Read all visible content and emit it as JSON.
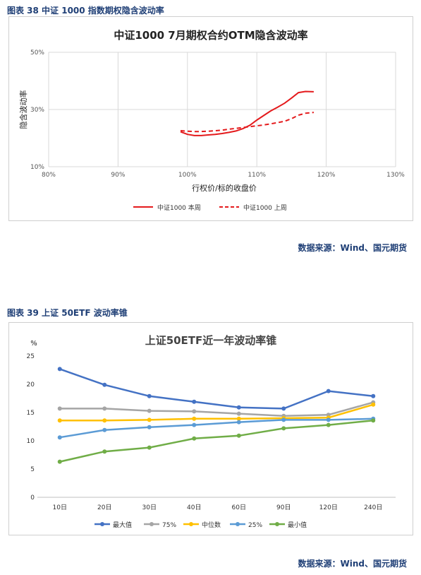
{
  "figure1": {
    "caption": "图表 38 中证 1000 指数期权隐含波动率",
    "source": "数据来源：Wind、国元期货"
  },
  "figure2": {
    "caption": "图表 39 上证 50ETF 波动率锥",
    "source": "数据来源：Wind、国元期货"
  },
  "chart_data": [
    {
      "type": "line",
      "title": "中证1000 7月期权合约OTM隐含波动率",
      "xlabel": "行权价/标的收盘价",
      "ylabel": "隐含波动率",
      "xlim": [
        80,
        130
      ],
      "ylim": [
        10,
        50
      ],
      "x_ticks": [
        "80%",
        "90%",
        "100%",
        "110%",
        "120%",
        "130%"
      ],
      "y_ticks": [
        "10%",
        "30%",
        "50%"
      ],
      "grid": true,
      "legend_position": "bottom",
      "series": [
        {
          "name": "中证1000 本周",
          "color": "#e41a1c",
          "dash": "solid",
          "x": [
            99,
            100,
            101,
            102,
            103,
            104,
            105,
            106,
            107,
            108,
            109,
            110,
            111,
            112,
            113,
            114,
            115,
            116,
            117,
            118.2
          ],
          "y": [
            22.2,
            21.3,
            20.9,
            20.9,
            21.1,
            21.3,
            21.6,
            22.0,
            22.5,
            23.3,
            24.5,
            26.3,
            27.9,
            29.5,
            30.8,
            32.2,
            34.0,
            35.9,
            36.3,
            36.2
          ]
        },
        {
          "name": "中证1000 上周",
          "color": "#e41a1c",
          "dash": "dashed",
          "x": [
            99,
            100,
            101,
            102,
            103,
            104,
            105,
            106,
            107,
            108,
            109,
            110,
            111,
            112,
            113,
            114,
            115,
            116,
            117,
            118.2
          ],
          "y": [
            22.6,
            22.4,
            22.3,
            22.3,
            22.4,
            22.6,
            22.8,
            23.1,
            23.4,
            23.7,
            24.0,
            24.3,
            24.6,
            25.0,
            25.4,
            25.9,
            26.8,
            28.0,
            28.7,
            29.0
          ]
        }
      ]
    },
    {
      "type": "line",
      "title": "上证50ETF近一年波动率锥",
      "unit": "%",
      "categories": [
        "10日",
        "20日",
        "30日",
        "40日",
        "60日",
        "90日",
        "120日",
        "240日"
      ],
      "ylim": [
        0,
        25
      ],
      "y_ticks": [
        "0",
        "5",
        "10",
        "15",
        "20",
        "25"
      ],
      "grid": false,
      "legend_position": "bottom",
      "series": [
        {
          "name": "最大值",
          "color": "#4472c4",
          "values": [
            22.7,
            19.9,
            17.9,
            16.9,
            15.9,
            15.7,
            18.8,
            17.9
          ]
        },
        {
          "name": "75%",
          "color": "#a5a5a5",
          "values": [
            15.7,
            15.7,
            15.3,
            15.2,
            14.8,
            14.4,
            14.6,
            16.8
          ]
        },
        {
          "name": "中位数",
          "color": "#ffc000",
          "values": [
            13.6,
            13.6,
            13.7,
            13.9,
            13.9,
            14.0,
            14.1,
            16.4
          ]
        },
        {
          "name": "25%",
          "color": "#5b9bd5",
          "values": [
            10.6,
            11.9,
            12.4,
            12.8,
            13.3,
            13.7,
            13.7,
            13.9
          ]
        },
        {
          "name": "最小值",
          "color": "#70ad47",
          "values": [
            6.3,
            8.1,
            8.8,
            10.4,
            10.9,
            12.2,
            12.8,
            13.6
          ]
        }
      ]
    }
  ]
}
